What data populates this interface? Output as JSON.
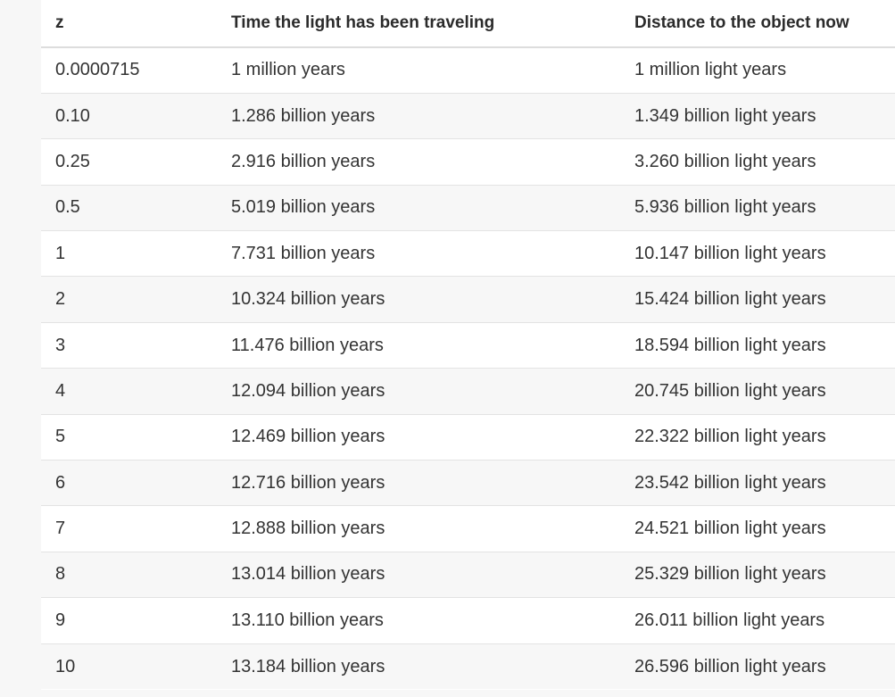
{
  "table": {
    "headers": [
      "z",
      "Time the light has been traveling",
      "Distance to the object now"
    ],
    "rows": [
      [
        "0.0000715",
        "1 million years",
        "1 million light years"
      ],
      [
        "0.10",
        "1.286 billion years",
        "1.349 billion light years"
      ],
      [
        "0.25",
        "2.916 billion years",
        "3.260 billion light years"
      ],
      [
        "0.5",
        "5.019 billion years",
        "5.936 billion light years"
      ],
      [
        "1",
        "7.731 billion years",
        "10.147 billion light years"
      ],
      [
        "2",
        "10.324 billion years",
        "15.424 billion light years"
      ],
      [
        "3",
        "11.476 billion years",
        "18.594 billion light years"
      ],
      [
        "4",
        "12.094 billion years",
        "20.745 billion light years"
      ],
      [
        "5",
        "12.469 billion years",
        "22.322 billion light years"
      ],
      [
        "6",
        "12.716 billion years",
        "23.542 billion light years"
      ],
      [
        "7",
        "12.888 billion years",
        "24.521 billion light years"
      ],
      [
        "8",
        "13.014 billion years",
        "25.329 billion light years"
      ],
      [
        "9",
        "13.110 billion years",
        "26.011 billion light years"
      ],
      [
        "10",
        "13.184 billion years",
        "26.596 billion light years"
      ]
    ]
  }
}
